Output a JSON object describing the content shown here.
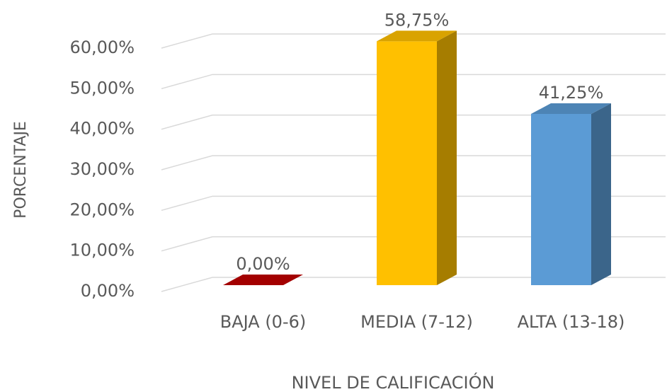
{
  "chart_data": {
    "type": "bar3d",
    "categories": [
      "BAJA (0-6)",
      "MEDIA (7-12)",
      "ALTA (13-18)"
    ],
    "values": [
      0,
      58.75,
      41.25
    ],
    "value_labels": [
      "0,00%",
      "58,75%",
      "41,25%"
    ],
    "colors": [
      "#c00000",
      "#ffc000",
      "#5b9bd5"
    ],
    "ylim": [
      0,
      60
    ],
    "yticks": [
      {
        "value": 0,
        "label": "0,00%"
      },
      {
        "value": 10,
        "label": "10,00%"
      },
      {
        "value": 20,
        "label": "20,00%"
      },
      {
        "value": 30,
        "label": "30,00%"
      },
      {
        "value": 40,
        "label": "40,00%"
      },
      {
        "value": 50,
        "label": "50,00%"
      },
      {
        "value": 60,
        "label": "60,00%"
      }
    ],
    "ylabel": "PORCENTAJE",
    "xlabel": "NIVEL DE CALIFICACIÓN",
    "grid": true
  }
}
